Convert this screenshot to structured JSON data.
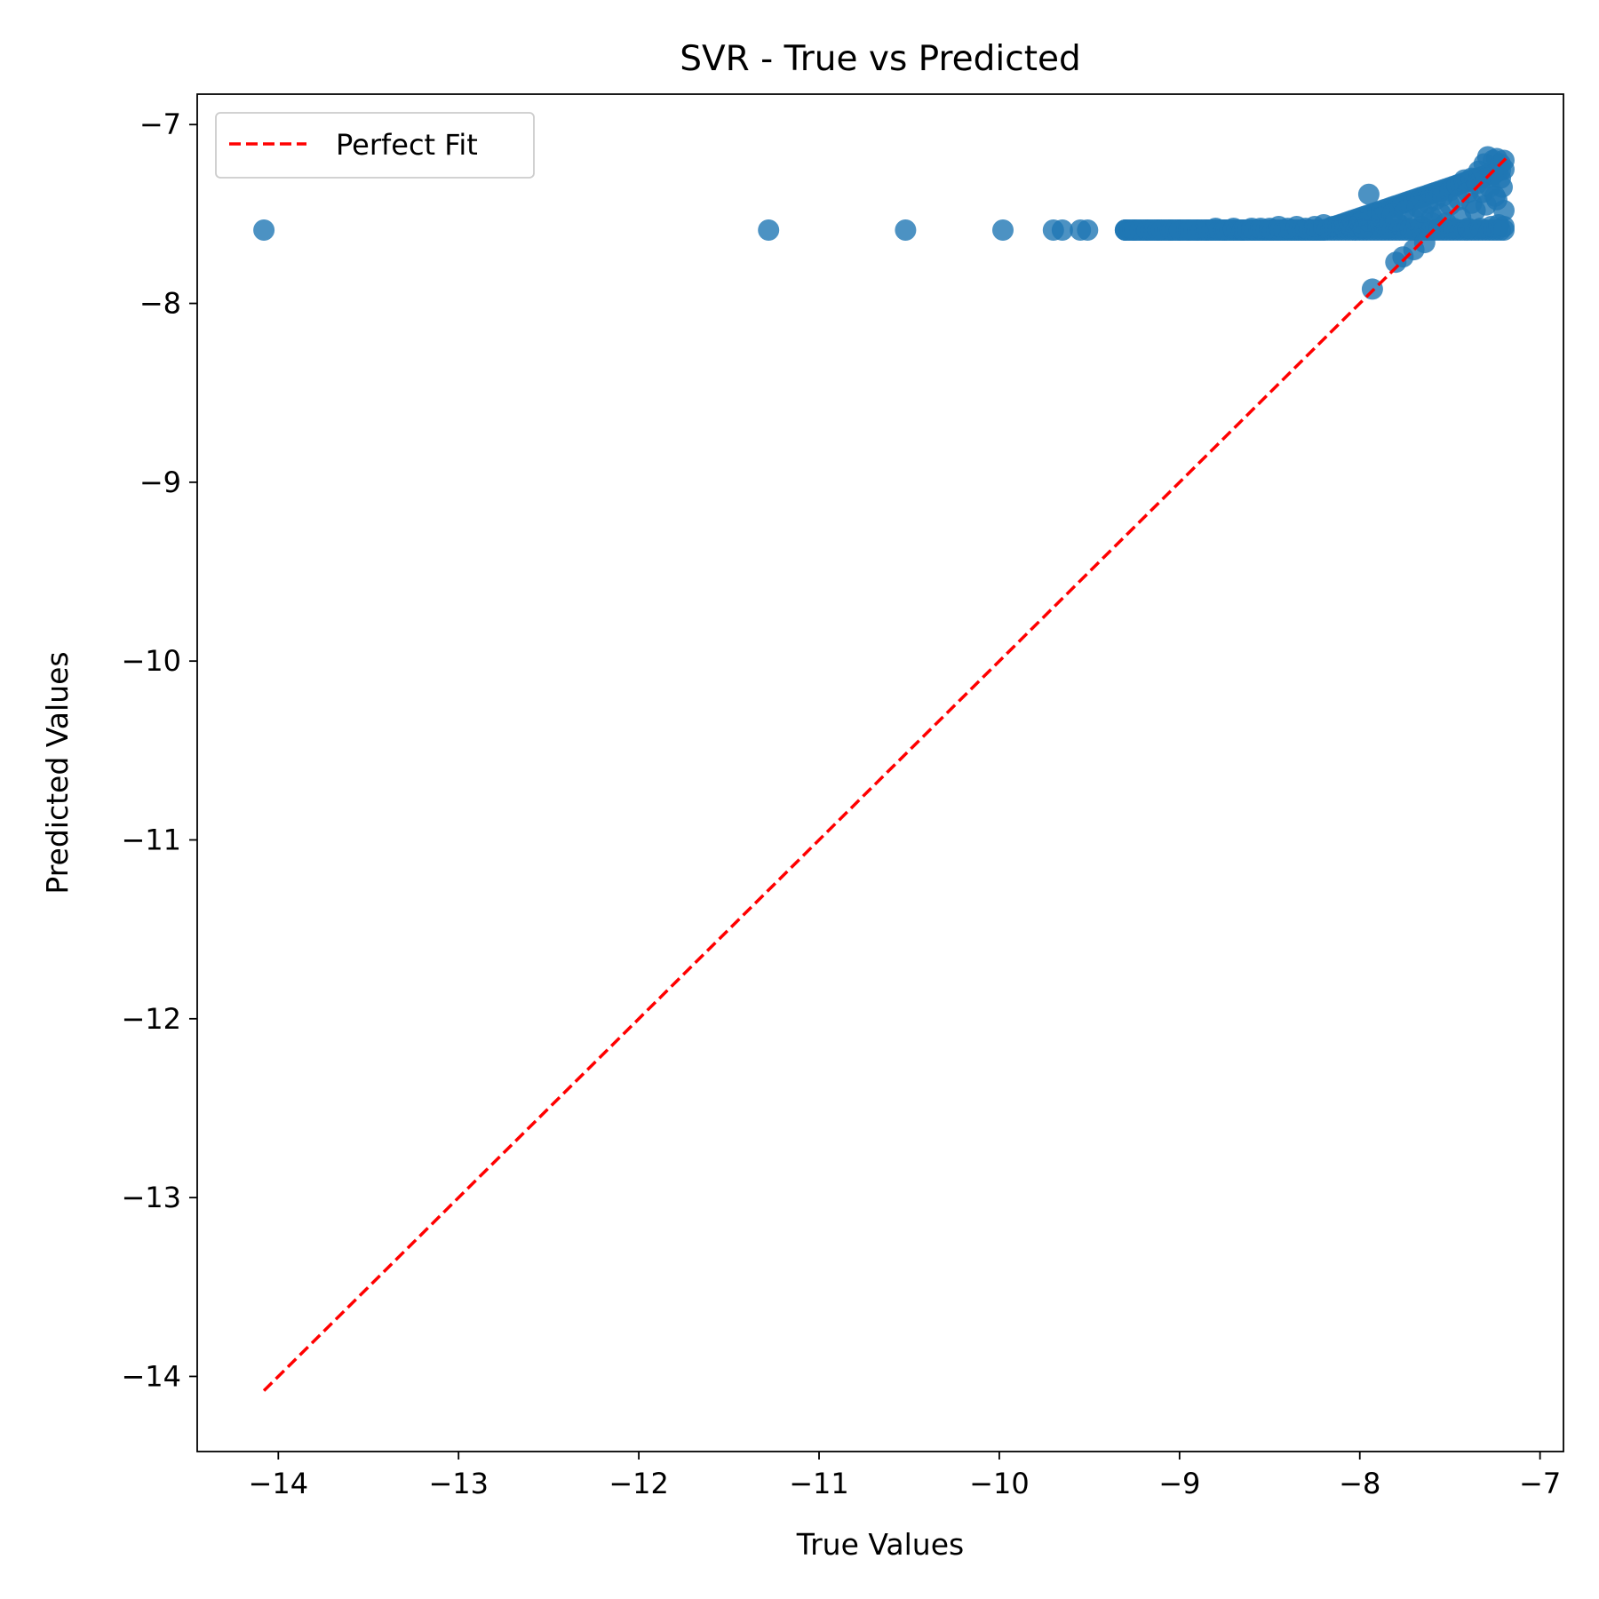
{
  "chart_data": {
    "type": "scatter",
    "title": "SVR - True vs Predicted",
    "xlabel": "True Values",
    "ylabel": "Predicted Values",
    "xlim": [
      -14.45,
      -6.87
    ],
    "ylim": [
      -14.42,
      -6.83
    ],
    "x_ticks": [
      -14,
      -13,
      -12,
      -11,
      -10,
      -9,
      -8,
      -7
    ],
    "y_ticks": [
      -14,
      -13,
      -12,
      -11,
      -10,
      -9,
      -8,
      -7
    ],
    "x_tick_labels": [
      "−14",
      "−13",
      "−12",
      "−11",
      "−10",
      "−9",
      "−8",
      "−7"
    ],
    "y_tick_labels": [
      "−14",
      "−13",
      "−12",
      "−11",
      "−10",
      "−9",
      "−8",
      "−7"
    ],
    "grid": false,
    "legend": {
      "position": "top-left",
      "entries": [
        "Perfect Fit"
      ]
    },
    "series": [
      {
        "name": "",
        "kind": "scatter",
        "color": "#1f77b4",
        "points": [
          [
            -14.08,
            -7.59
          ],
          [
            -11.28,
            -7.59
          ],
          [
            -10.52,
            -7.59
          ],
          [
            -9.98,
            -7.59
          ],
          [
            -9.7,
            -7.59
          ],
          [
            -9.65,
            -7.59
          ],
          [
            -9.55,
            -7.59
          ],
          [
            -9.51,
            -7.59
          ],
          [
            -9.3,
            -7.59
          ],
          [
            -9.25,
            -7.59
          ],
          [
            -9.18,
            -7.59
          ],
          [
            -9.12,
            -7.59
          ],
          [
            -9.05,
            -7.59
          ],
          [
            -9.0,
            -7.59
          ],
          [
            -8.95,
            -7.59
          ],
          [
            -8.9,
            -7.59
          ],
          [
            -8.85,
            -7.59
          ],
          [
            -8.8,
            -7.58
          ],
          [
            -8.75,
            -7.59
          ],
          [
            -8.7,
            -7.58
          ],
          [
            -8.65,
            -7.59
          ],
          [
            -8.6,
            -7.58
          ],
          [
            -8.55,
            -7.58
          ],
          [
            -8.5,
            -7.58
          ],
          [
            -8.45,
            -7.57
          ],
          [
            -8.4,
            -7.58
          ],
          [
            -8.35,
            -7.57
          ],
          [
            -8.3,
            -7.58
          ],
          [
            -8.25,
            -7.57
          ],
          [
            -8.2,
            -7.56
          ],
          [
            -8.15,
            -7.57
          ],
          [
            -8.1,
            -7.56
          ],
          [
            -8.05,
            -7.57
          ],
          [
            -8.0,
            -7.55
          ],
          [
            -7.98,
            -7.58
          ],
          [
            -7.95,
            -7.54
          ],
          [
            -7.93,
            -7.92
          ],
          [
            -7.95,
            -7.39
          ],
          [
            -7.9,
            -7.56
          ],
          [
            -7.88,
            -7.52
          ],
          [
            -7.85,
            -7.58
          ],
          [
            -7.82,
            -7.5
          ],
          [
            -7.8,
            -7.77
          ],
          [
            -7.78,
            -7.56
          ],
          [
            -7.76,
            -7.74
          ],
          [
            -7.75,
            -7.48
          ],
          [
            -7.72,
            -7.58
          ],
          [
            -7.7,
            -7.7
          ],
          [
            -7.68,
            -7.46
          ],
          [
            -7.66,
            -7.57
          ],
          [
            -7.64,
            -7.66
          ],
          [
            -7.62,
            -7.44
          ],
          [
            -7.6,
            -7.55
          ],
          [
            -7.58,
            -7.42
          ],
          [
            -7.56,
            -7.58
          ],
          [
            -7.54,
            -7.4
          ],
          [
            -7.52,
            -7.55
          ],
          [
            -7.5,
            -7.37
          ],
          [
            -7.48,
            -7.58
          ],
          [
            -7.46,
            -7.34
          ],
          [
            -7.44,
            -7.52
          ],
          [
            -7.42,
            -7.31
          ],
          [
            -7.4,
            -7.58
          ],
          [
            -7.38,
            -7.3
          ],
          [
            -7.36,
            -7.48
          ],
          [
            -7.34,
            -7.26
          ],
          [
            -7.33,
            -7.58
          ],
          [
            -7.31,
            -7.22
          ],
          [
            -7.3,
            -7.45
          ],
          [
            -7.29,
            -7.18
          ],
          [
            -7.27,
            -7.57
          ],
          [
            -7.26,
            -7.2
          ],
          [
            -7.25,
            -7.4
          ],
          [
            -7.24,
            -7.19
          ],
          [
            -7.23,
            -7.56
          ],
          [
            -7.22,
            -7.22
          ],
          [
            -7.21,
            -7.35
          ],
          [
            -7.2,
            -7.2
          ],
          [
            -7.2,
            -7.48
          ],
          [
            -7.2,
            -7.57
          ],
          [
            -7.55,
            -7.5
          ],
          [
            -7.5,
            -7.45
          ],
          [
            -7.45,
            -7.42
          ],
          [
            -7.4,
            -7.38
          ],
          [
            -7.35,
            -7.33
          ],
          [
            -7.3,
            -7.3
          ],
          [
            -7.28,
            -7.35
          ],
          [
            -7.26,
            -7.28
          ],
          [
            -7.6,
            -7.52
          ],
          [
            -7.7,
            -7.53
          ],
          [
            -7.8,
            -7.54
          ],
          [
            -7.65,
            -7.49
          ],
          [
            -7.22,
            -7.3
          ],
          [
            -7.24,
            -7.42
          ],
          [
            -7.32,
            -7.38
          ],
          [
            -7.38,
            -7.44
          ]
        ]
      },
      {
        "name": "Perfect Fit",
        "kind": "line",
        "style": "dashed",
        "color": "#ff0000",
        "points": [
          [
            -14.08,
            -14.08
          ],
          [
            -7.19,
            -7.19
          ]
        ]
      }
    ]
  }
}
